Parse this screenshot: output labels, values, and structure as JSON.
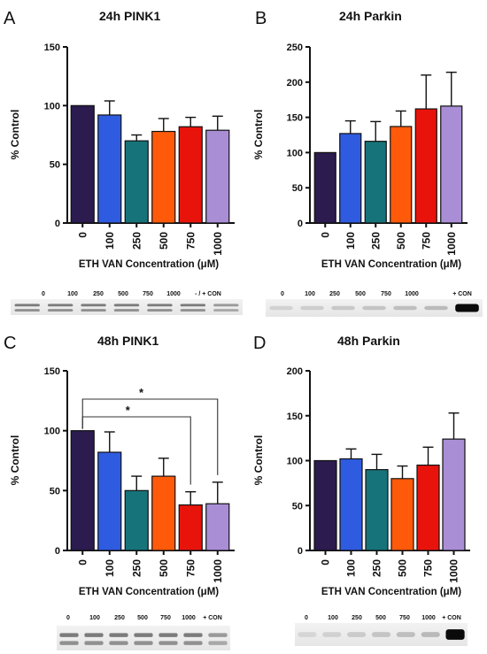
{
  "chart_data": [
    {
      "type": "bar",
      "panel_letter": "A",
      "title": "24h PINK1",
      "ylabel": "% Control",
      "xlabel": "ETH VAN Concentration (μM)",
      "ylim": [
        0,
        150
      ],
      "yticks": [
        0,
        50,
        100,
        150
      ],
      "categories": [
        "0",
        "100",
        "250",
        "500",
        "750",
        "1000"
      ],
      "values": [
        100,
        92,
        70,
        78,
        82,
        79
      ],
      "errors": [
        0,
        12,
        5,
        11,
        8,
        12
      ],
      "colors": [
        "#2b1b4e",
        "#2f5be0",
        "#17737a",
        "#ff5a0a",
        "#e8140c",
        "#a98ed6"
      ],
      "blot_lanes": [
        "0",
        "100",
        "250",
        "500",
        "750",
        "1000",
        "- / + CON"
      ],
      "significance": []
    },
    {
      "type": "bar",
      "panel_letter": "B",
      "title": "24h Parkin",
      "ylabel": "% Control",
      "xlabel": "ETH VAN Concentration (μM)",
      "ylim": [
        0,
        250
      ],
      "yticks": [
        0,
        50,
        100,
        150,
        200,
        250
      ],
      "categories": [
        "0",
        "100",
        "250",
        "500",
        "750",
        "1000"
      ],
      "values": [
        100,
        127,
        116,
        137,
        162,
        166
      ],
      "errors": [
        0,
        18,
        28,
        22,
        48,
        48
      ],
      "colors": [
        "#2b1b4e",
        "#2f5be0",
        "#17737a",
        "#ff5a0a",
        "#e8140c",
        "#a98ed6"
      ],
      "blot_lanes": [
        "0",
        "100",
        "250",
        "500",
        "750",
        "1000",
        "+ CON"
      ],
      "significance": []
    },
    {
      "type": "bar",
      "panel_letter": "C",
      "title": "48h PINK1",
      "ylabel": "% Control",
      "xlabel": "ETH VAN Concentration (μM)",
      "ylim": [
        0,
        150
      ],
      "yticks": [
        0,
        50,
        100,
        150
      ],
      "categories": [
        "0",
        "100",
        "250",
        "500",
        "750",
        "1000"
      ],
      "values": [
        100,
        82,
        50,
        62,
        38,
        39
      ],
      "errors": [
        0,
        17,
        12,
        15,
        11,
        18
      ],
      "colors": [
        "#2b1b4e",
        "#2f5be0",
        "#17737a",
        "#ff5a0a",
        "#e8140c",
        "#a98ed6"
      ],
      "blot_lanes": [
        "0",
        "100",
        "250",
        "500",
        "750",
        "1000",
        "+ CON"
      ],
      "significance": [
        {
          "from": 0,
          "to": 4,
          "label": "*"
        },
        {
          "from": 0,
          "to": 5,
          "label": "*"
        }
      ]
    },
    {
      "type": "bar",
      "panel_letter": "D",
      "title": "48h Parkin",
      "ylabel": "% Control",
      "xlabel": "ETH VAN Concentration (μM)",
      "ylim": [
        0,
        200
      ],
      "yticks": [
        0,
        50,
        100,
        150,
        200
      ],
      "categories": [
        "0",
        "100",
        "250",
        "500",
        "750",
        "1000"
      ],
      "values": [
        100,
        102,
        90,
        80,
        95,
        124
      ],
      "errors": [
        0,
        11,
        17,
        14,
        20,
        29
      ],
      "colors": [
        "#2b1b4e",
        "#2f5be0",
        "#17737a",
        "#ff5a0a",
        "#e8140c",
        "#a98ed6"
      ],
      "blot_lanes": [
        "0",
        "100",
        "250",
        "500",
        "750",
        "1000",
        "+ CON"
      ],
      "significance": []
    }
  ]
}
